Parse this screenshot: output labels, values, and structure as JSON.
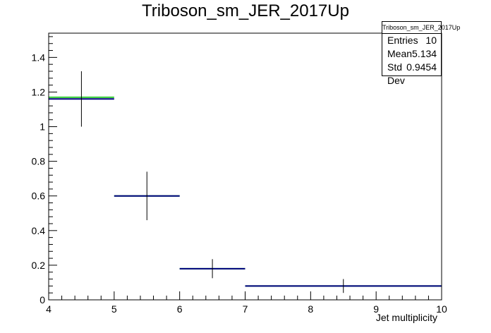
{
  "title": "Triboson_sm_JER_2017Up",
  "stats": {
    "title": "Triboson_sm_JER_2017Up",
    "rows": [
      {
        "label": "Entries",
        "value": "10"
      },
      {
        "label": "Mean",
        "value": "5.134"
      },
      {
        "label": "Std Dev",
        "value": "0.9454"
      }
    ]
  },
  "chart_data": {
    "type": "histogram",
    "xlabel": "Jet multiplicity",
    "ylabel": "",
    "xlim": [
      4,
      10
    ],
    "ylim": [
      0,
      1.54
    ],
    "xticks": [
      "4",
      "5",
      "6",
      "7",
      "8",
      "9",
      "10"
    ],
    "yticks": [
      "0",
      "0.2",
      "0.4",
      "0.6",
      "0.8",
      "1",
      "1.2",
      "1.4"
    ],
    "colors": {
      "nominal": "#000080",
      "variation": "#33cc33",
      "error": "#000000"
    },
    "bins": [
      {
        "low": 4,
        "high": 5,
        "value": 1.16,
        "variation": 1.17,
        "err": 0.16
      },
      {
        "low": 5,
        "high": 6,
        "value": 0.6,
        "variation": 0.6,
        "err": 0.14
      },
      {
        "low": 6,
        "high": 7,
        "value": 0.18,
        "variation": 0.18,
        "err": 0.055
      },
      {
        "low": 7,
        "high": 10,
        "value": 0.08,
        "variation": 0.08,
        "err": 0.04
      }
    ]
  }
}
